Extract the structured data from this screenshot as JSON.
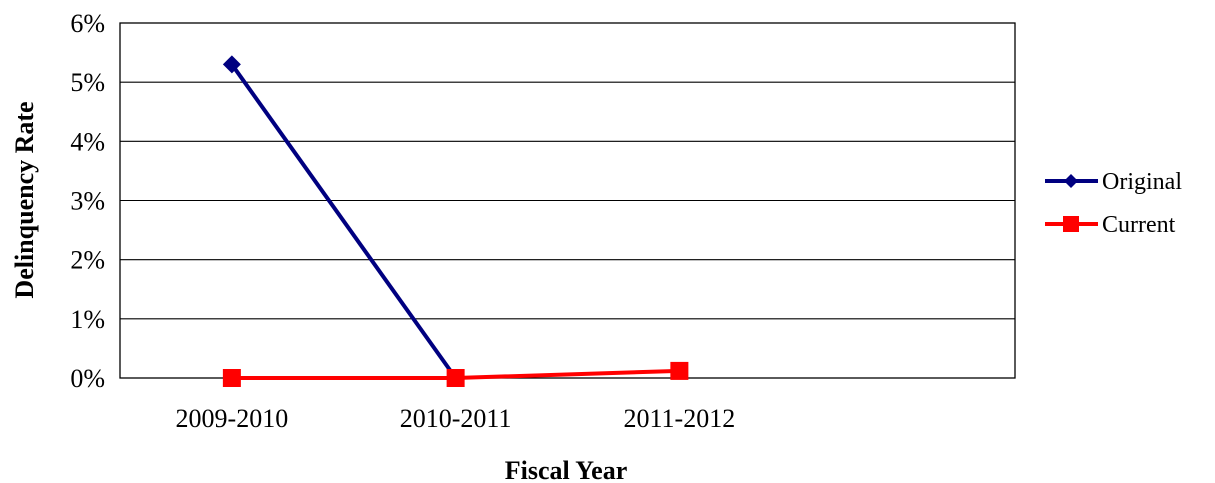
{
  "chart_data": {
    "type": "line",
    "title": "",
    "xlabel": "Fiscal Year",
    "ylabel": "Delinquency Rate",
    "categories": [
      "2009-2010",
      "2010-2011",
      "2011-2012",
      ""
    ],
    "y_ticks": [
      "0%",
      "1%",
      "2%",
      "3%",
      "4%",
      "5%",
      "6%"
    ],
    "ylim": [
      0,
      6
    ],
    "grid": true,
    "legend_position": "right",
    "series": [
      {
        "name": "Original",
        "color": "#000080",
        "marker": "diamond",
        "values": [
          5.3,
          0.0,
          null,
          null
        ]
      },
      {
        "name": "Current",
        "color": "#FF0000",
        "marker": "square",
        "values": [
          0.0,
          0.0,
          0.12,
          null
        ]
      }
    ]
  }
}
